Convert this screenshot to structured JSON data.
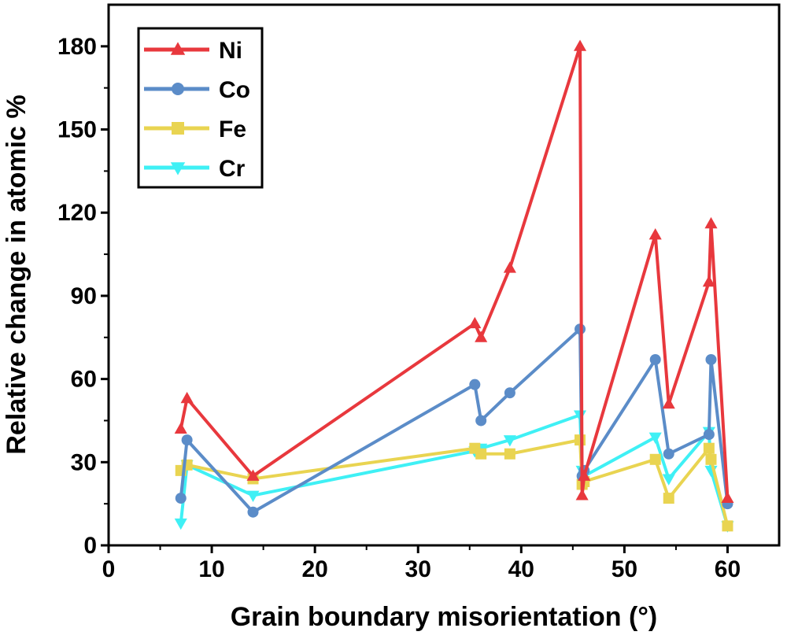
{
  "chart_data": {
    "type": "line",
    "title": "",
    "xlabel": "Grain boundary misorientation (°)",
    "ylabel": "Relative change in atomic %",
    "xlim": [
      0,
      65
    ],
    "ylim": [
      0,
      195
    ],
    "xticks": [
      0,
      10,
      20,
      30,
      40,
      50,
      60
    ],
    "yticks": [
      0,
      30,
      60,
      90,
      120,
      150,
      180
    ],
    "legend_position": "top-left",
    "series": [
      {
        "name": "Ni",
        "color": "#e8383d",
        "marker": "triangle-up",
        "x": [
          7.0,
          7.6,
          14.0,
          35.5,
          36.1,
          38.9,
          45.7,
          45.9,
          46.1,
          53.0,
          54.3,
          58.2,
          58.4,
          60.0
        ],
        "y": [
          42,
          53,
          25,
          80,
          75,
          100,
          180,
          18,
          25,
          112,
          51,
          95,
          116,
          17
        ]
      },
      {
        "name": "Co",
        "color": "#5b8cc8",
        "marker": "circle",
        "x": [
          7.0,
          7.6,
          14.0,
          35.5,
          36.1,
          38.9,
          45.7,
          45.9,
          46.1,
          53.0,
          54.3,
          58.2,
          58.4,
          60.0
        ],
        "y": [
          17,
          38,
          12,
          58,
          45,
          55,
          78,
          25,
          27,
          67,
          33,
          40,
          67,
          15
        ]
      },
      {
        "name": "Fe",
        "color": "#e9d451",
        "marker": "square",
        "x": [
          7.0,
          7.6,
          14.0,
          35.5,
          36.1,
          38.9,
          45.7,
          45.9,
          46.1,
          53.0,
          54.3,
          58.2,
          58.4,
          60.0
        ],
        "y": [
          27,
          29,
          24,
          35,
          33,
          33,
          38,
          22,
          23,
          31,
          17,
          35,
          31,
          7
        ]
      },
      {
        "name": "Cr",
        "color": "#3ff0f5",
        "marker": "triangle-down",
        "x": [
          7.0,
          7.6,
          14.0,
          35.5,
          36.1,
          38.9,
          45.7,
          45.9,
          46.1,
          53.0,
          54.3,
          58.2,
          58.4,
          60.0
        ],
        "y": [
          8,
          29,
          18,
          34,
          35,
          38,
          47,
          27,
          25,
          39,
          24,
          41,
          27,
          7
        ]
      }
    ]
  }
}
